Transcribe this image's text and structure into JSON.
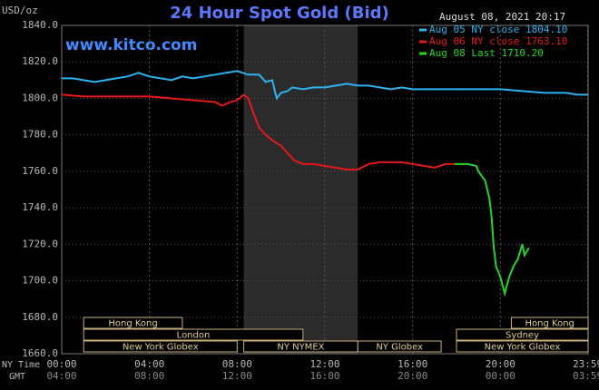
{
  "chart_data": {
    "type": "line",
    "title": "24 Hour Spot Gold (Bid)",
    "y_unit": "USD/oz",
    "timestamp": "August 08, 2021 20:17",
    "watermark": "www.kitco.com",
    "x_row_labels": [
      "NY Time",
      "GMT"
    ],
    "xlim": [
      0,
      24
    ],
    "ylim": [
      1660,
      1840
    ],
    "xticks": [
      {
        "value": 0,
        "label": "00:00"
      },
      {
        "value": 4,
        "label": "04:00"
      },
      {
        "value": 8,
        "label": "08:00"
      },
      {
        "value": 12,
        "label": "12:00"
      },
      {
        "value": 16,
        "label": "16:00"
      },
      {
        "value": 20,
        "label": "20:00"
      },
      {
        "value": 23.98,
        "label": "23:59"
      }
    ],
    "gmt_tick_labels": [
      "04:00",
      "08:00",
      "12:00",
      "16:00",
      "20:00",
      "00:00",
      "03:59"
    ],
    "yticks": [
      {
        "value": 1660,
        "label": "1660.0"
      },
      {
        "value": 1680,
        "label": "1680.0"
      },
      {
        "value": 1700,
        "label": "1700.0"
      },
      {
        "value": 1720,
        "label": "1720.0"
      },
      {
        "value": 1740,
        "label": "1740.0"
      },
      {
        "value": 1760,
        "label": "1760.0"
      },
      {
        "value": 1780,
        "label": "1780.0"
      },
      {
        "value": 1800,
        "label": "1800.0"
      },
      {
        "value": 1820,
        "label": "1820.0"
      },
      {
        "value": 1840,
        "label": "1840.0"
      }
    ],
    "grid": true,
    "series": [
      {
        "name": "Aug 05 NY close 1804.10",
        "color": "#2ab4f0",
        "x": [
          0,
          0.5,
          1,
          1.5,
          2,
          2.5,
          3,
          3.5,
          4,
          4.5,
          5,
          5.5,
          6,
          6.5,
          7,
          7.5,
          8,
          8.5,
          9,
          9.3,
          9.6,
          9.8,
          10,
          10.3,
          10.5,
          11,
          11.5,
          12,
          12.5,
          13,
          13.5,
          14,
          14.5,
          15,
          15.5,
          16,
          17,
          18,
          19,
          20,
          21,
          22,
          23,
          23.5,
          24
        ],
        "values": [
          1811,
          1811,
          1810,
          1809,
          1810,
          1811,
          1812,
          1814,
          1812,
          1811,
          1810,
          1812,
          1811,
          1812,
          1813,
          1814,
          1815,
          1813,
          1813,
          1809,
          1810,
          1800,
          1803,
          1804,
          1806,
          1805,
          1806,
          1806,
          1807,
          1808,
          1807,
          1807,
          1806,
          1805,
          1806,
          1805,
          1805,
          1805,
          1805,
          1805,
          1804,
          1803,
          1803,
          1802,
          1802
        ]
      },
      {
        "name": "Aug 06 NY close 1763.10",
        "color": "#e81818",
        "x": [
          0,
          1,
          2,
          3,
          4,
          5,
          6,
          7,
          7.3,
          7.7,
          8,
          8.3,
          8.5,
          8.8,
          9,
          9.3,
          9.6,
          10,
          10.3,
          10.6,
          11,
          11.5,
          12,
          12.5,
          13,
          13.5,
          14,
          14.5,
          15,
          15.5,
          16,
          16.5,
          17,
          17.5,
          17.9
        ],
        "values": [
          1802,
          1801,
          1801,
          1801,
          1801,
          1800,
          1799,
          1798,
          1796,
          1798,
          1799,
          1802,
          1800,
          1790,
          1784,
          1780,
          1777,
          1774,
          1770,
          1766,
          1764,
          1764,
          1763,
          1762,
          1761,
          1761,
          1764,
          1765,
          1765,
          1765,
          1764,
          1763,
          1762,
          1764,
          1764
        ]
      },
      {
        "name": "Aug 08 Last 1710.20",
        "color": "#22d822",
        "x": [
          17.9,
          18.5,
          18.9,
          19,
          19.3,
          19.5,
          19.6,
          19.7,
          19.8,
          20,
          20.2,
          20.4,
          20.6,
          20.8,
          21,
          21.1,
          21.3
        ],
        "values": [
          1764,
          1764,
          1763,
          1760,
          1755,
          1745,
          1735,
          1718,
          1708,
          1702,
          1693,
          1702,
          1708,
          1712,
          1720,
          1714,
          1718
        ]
      }
    ],
    "sessions": [
      {
        "label": "Hong Kong",
        "start": 1,
        "end": 5.5
      },
      {
        "label": "Hong Kong",
        "start": 20.5,
        "end": 24
      },
      {
        "label": "London",
        "start": 1,
        "end": 11
      },
      {
        "label": "Sydney",
        "start": 18,
        "end": 24
      },
      {
        "label": "New York Globex",
        "start": 1,
        "end": 8
      },
      {
        "label": "NY NYMEX",
        "start": 8.3,
        "end": 13.5
      },
      {
        "label": "NY Globex",
        "start": 13.5,
        "end": 17.3
      },
      {
        "label": "New York Globex",
        "start": 18,
        "end": 24
      }
    ]
  }
}
